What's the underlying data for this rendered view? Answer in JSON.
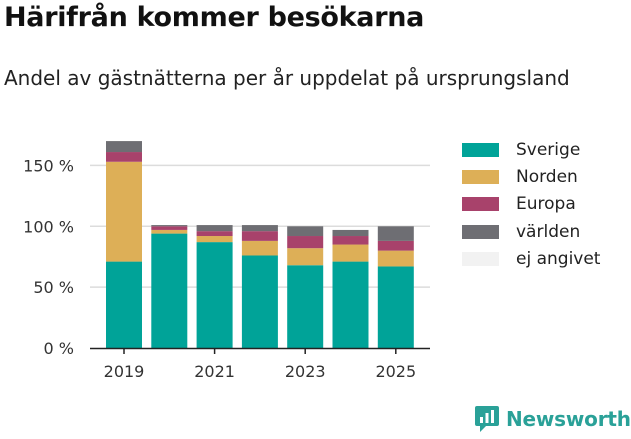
{
  "header": {
    "title": "Härifrån kommer besökarna",
    "subtitle": "Andel av gästnätterna per år uppdelat på ursprungsland"
  },
  "brand": {
    "name": "Newsworthy",
    "color": "#2aa198",
    "icon": "newsworthy-chart-icon"
  },
  "colors": {
    "Sverige": "#00a398",
    "Norden": "#ddaf57",
    "Europa": "#a8426b",
    "världen": "#6e6e73",
    "ej angivet": "#f2f2f2"
  },
  "chart_data": {
    "type": "bar",
    "stacked": true,
    "categories": [
      "2019",
      "2020",
      "2021",
      "2022",
      "2023",
      "2024",
      "2025"
    ],
    "x_tick_labels": [
      "2019",
      "2021",
      "2023",
      "2025"
    ],
    "series": [
      {
        "name": "Sverige",
        "values": [
          71,
          94,
          87,
          76,
          68,
          71,
          67
        ]
      },
      {
        "name": "Norden",
        "values": [
          82,
          3,
          5,
          12,
          14,
          14,
          13
        ]
      },
      {
        "name": "Europa",
        "values": [
          8,
          3,
          4,
          8,
          10,
          7,
          8
        ]
      },
      {
        "name": "världen",
        "values": [
          9,
          1,
          5,
          5,
          8,
          5,
          12
        ]
      },
      {
        "name": "ej angivet",
        "values": [
          0,
          0,
          0,
          0,
          0,
          0,
          0
        ]
      }
    ],
    "y_ticks": [
      0,
      50,
      100,
      150
    ],
    "y_tick_labels": [
      "0 %",
      "50 %",
      "100 %",
      "150 %"
    ],
    "ylim": [
      0,
      175
    ],
    "grid": true,
    "legend_position": "right"
  }
}
